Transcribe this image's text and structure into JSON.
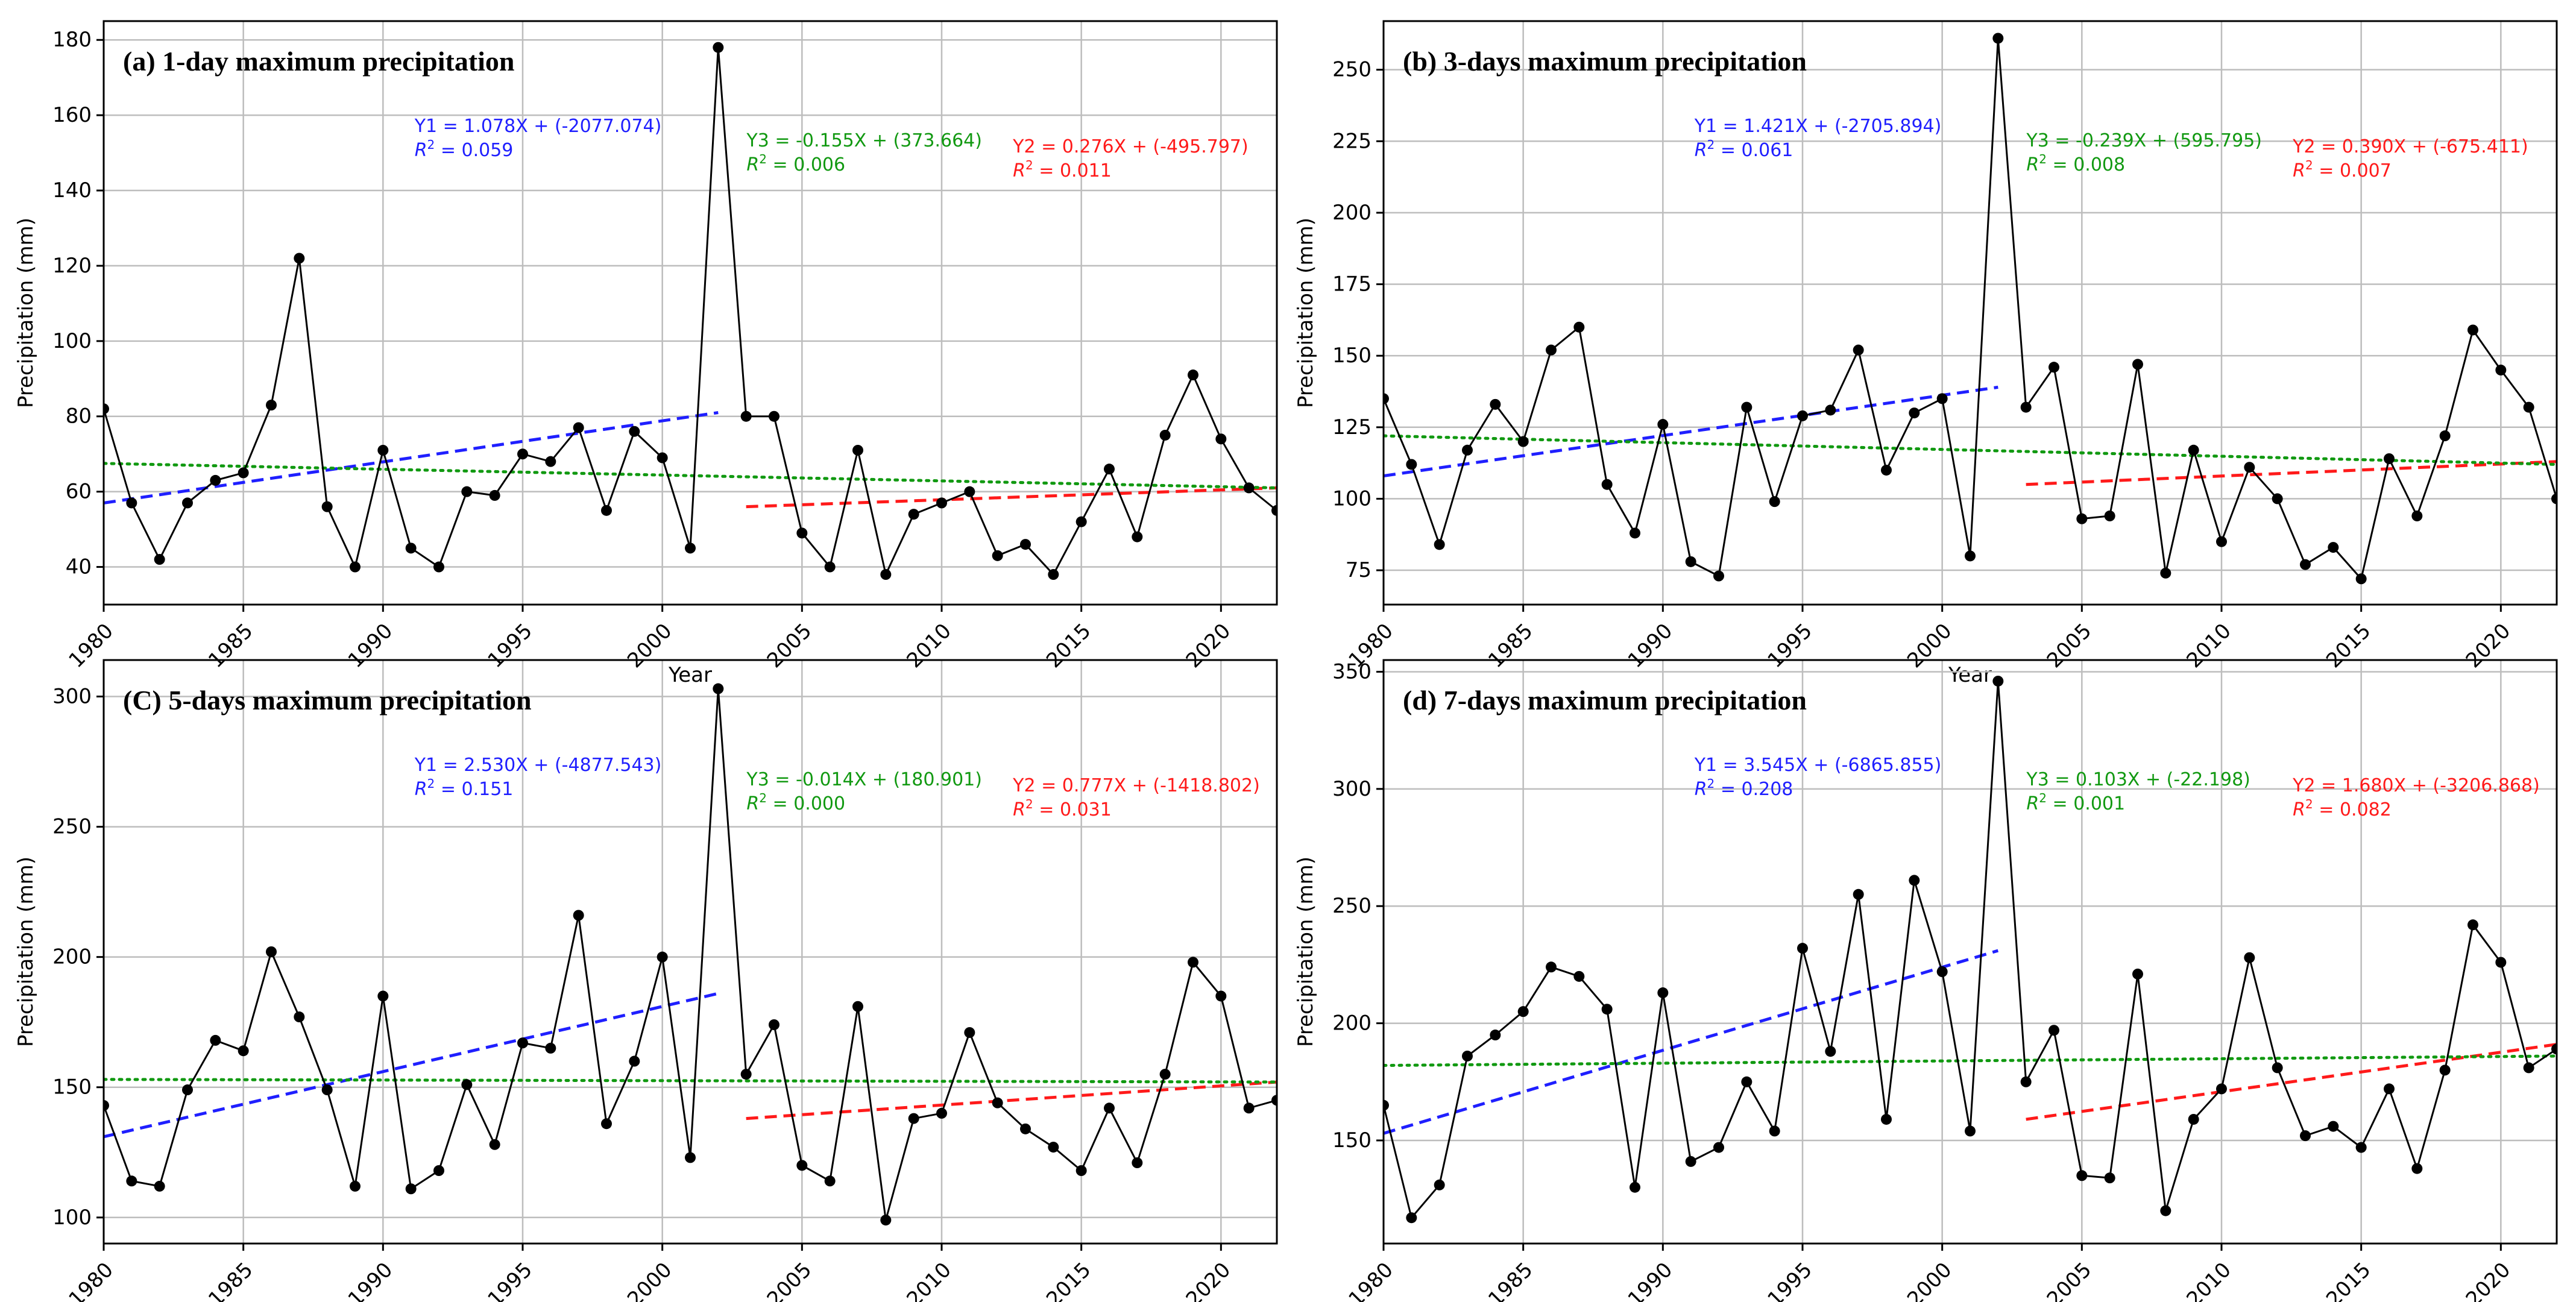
{
  "figure": {
    "xlabel": "Year",
    "ylabel": "Precipitation (mm)"
  },
  "colors": {
    "series": "#000000",
    "trend1": "#1f1fff",
    "trend2": "#ff1a1a",
    "trend3": "#119911",
    "grid": "#bdbdbd",
    "frame": "#000000"
  },
  "chart_data": [
    {
      "type": "line",
      "title": "(a) 1-day maximum precipitation",
      "xlabel": "Year",
      "ylabel": "Precipitation (mm)",
      "xlim": [
        1980,
        2022
      ],
      "ylim": [
        30,
        185
      ],
      "xticks": [
        1980,
        1985,
        1990,
        1995,
        2000,
        2005,
        2010,
        2015,
        2020
      ],
      "yticks": [
        40,
        60,
        80,
        100,
        120,
        140,
        160,
        180
      ],
      "grid": true,
      "x": [
        1980,
        1981,
        1982,
        1983,
        1984,
        1985,
        1986,
        1987,
        1988,
        1989,
        1990,
        1991,
        1992,
        1993,
        1994,
        1995,
        1996,
        1997,
        1998,
        1999,
        2000,
        2001,
        2002,
        2003,
        2004,
        2005,
        2006,
        2007,
        2008,
        2009,
        2010,
        2011,
        2012,
        2013,
        2014,
        2015,
        2016,
        2017,
        2018,
        2019,
        2020,
        2021,
        2022
      ],
      "y": [
        82,
        57,
        42,
        57,
        63,
        65,
        83,
        122,
        56,
        40,
        71,
        45,
        40,
        60,
        59,
        70,
        68,
        77,
        55,
        76,
        69,
        45,
        178,
        80,
        80,
        49,
        40,
        71,
        38,
        54,
        57,
        60,
        43,
        46,
        38,
        52,
        66,
        48,
        75,
        91,
        74,
        61,
        55
      ],
      "trends": [
        {
          "key": "Y1",
          "equation": "Y1 = 1.078X + (-2077.074)",
          "r2": "0.059",
          "x": [
            1980,
            2002
          ],
          "y": [
            57,
            81
          ],
          "style": "dashed",
          "color": "blue"
        },
        {
          "key": "Y2",
          "equation": "Y2 = 0.276X + (-495.797)",
          "r2": "0.011",
          "x": [
            2003,
            2022
          ],
          "y": [
            56,
            61
          ],
          "style": "dashed",
          "color": "red"
        },
        {
          "key": "Y3",
          "equation": "Y3 = -0.155X + (373.664)",
          "r2": "0.006",
          "x": [
            1980,
            2022
          ],
          "y": [
            67.5,
            61
          ],
          "style": "dotted",
          "color": "green"
        }
      ]
    },
    {
      "type": "line",
      "title": "(b) 3-days maximum precipitation",
      "xlabel": "Year",
      "ylabel": "Precipitation (mm)",
      "xlim": [
        1980,
        2022
      ],
      "ylim": [
        63,
        267
      ],
      "xticks": [
        1980,
        1985,
        1990,
        1995,
        2000,
        2005,
        2010,
        2015,
        2020
      ],
      "yticks": [
        75,
        100,
        125,
        150,
        175,
        200,
        225,
        250
      ],
      "grid": true,
      "x": [
        1980,
        1981,
        1982,
        1983,
        1984,
        1985,
        1986,
        1987,
        1988,
        1989,
        1990,
        1991,
        1992,
        1993,
        1994,
        1995,
        1996,
        1997,
        1998,
        1999,
        2000,
        2001,
        2002,
        2003,
        2004,
        2005,
        2006,
        2007,
        2008,
        2009,
        2010,
        2011,
        2012,
        2013,
        2014,
        2015,
        2016,
        2017,
        2018,
        2019,
        2020,
        2021,
        2022
      ],
      "y": [
        135,
        112,
        84,
        117,
        133,
        120,
        152,
        160,
        105,
        88,
        126,
        78,
        73,
        132,
        99,
        129,
        131,
        152,
        110,
        130,
        135,
        80,
        261,
        132,
        146,
        93,
        94,
        147,
        74,
        117,
        85,
        111,
        100,
        77,
        83,
        72,
        114,
        94,
        122,
        159,
        145,
        132,
        100
      ],
      "trends": [
        {
          "key": "Y1",
          "equation": "Y1 = 1.421X + (-2705.894)",
          "r2": "0.061",
          "x": [
            1980,
            2002
          ],
          "y": [
            108,
            139
          ],
          "style": "dashed",
          "color": "blue"
        },
        {
          "key": "Y2",
          "equation": "Y2 = 0.390X + (-675.411)",
          "r2": "0.007",
          "x": [
            2003,
            2022
          ],
          "y": [
            105,
            113
          ],
          "style": "dashed",
          "color": "red"
        },
        {
          "key": "Y3",
          "equation": "Y3 = -0.239X + (595.795)",
          "r2": "0.008",
          "x": [
            1980,
            2022
          ],
          "y": [
            122,
            112
          ],
          "style": "dotted",
          "color": "green"
        }
      ]
    },
    {
      "type": "line",
      "title": "(C) 5-days maximum precipitation",
      "xlabel": "Year",
      "ylabel": "Precipitation (mm)",
      "xlim": [
        1980,
        2022
      ],
      "ylim": [
        90,
        314
      ],
      "xticks": [
        1980,
        1985,
        1990,
        1995,
        2000,
        2005,
        2010,
        2015,
        2020
      ],
      "yticks": [
        100,
        150,
        200,
        250,
        300
      ],
      "grid": true,
      "x": [
        1980,
        1981,
        1982,
        1983,
        1984,
        1985,
        1986,
        1987,
        1988,
        1989,
        1990,
        1991,
        1992,
        1993,
        1994,
        1995,
        1996,
        1997,
        1998,
        1999,
        2000,
        2001,
        2002,
        2003,
        2004,
        2005,
        2006,
        2007,
        2008,
        2009,
        2010,
        2011,
        2012,
        2013,
        2014,
        2015,
        2016,
        2017,
        2018,
        2019,
        2020,
        2021,
        2022
      ],
      "y": [
        143,
        114,
        112,
        149,
        168,
        164,
        202,
        177,
        149,
        112,
        185,
        111,
        118,
        151,
        128,
        167,
        165,
        216,
        136,
        160,
        200,
        123,
        303,
        155,
        174,
        120,
        114,
        181,
        99,
        138,
        140,
        171,
        144,
        134,
        127,
        118,
        142,
        121,
        155,
        198,
        185,
        142,
        145
      ],
      "trends": [
        {
          "key": "Y1",
          "equation": "Y1 = 2.530X + (-4877.543)",
          "r2": "0.151",
          "x": [
            1980,
            2002
          ],
          "y": [
            131,
            186
          ],
          "style": "dashed",
          "color": "blue"
        },
        {
          "key": "Y2",
          "equation": "Y2 = 0.777X + (-1418.802)",
          "r2": "0.031",
          "x": [
            2003,
            2022
          ],
          "y": [
            138,
            152
          ],
          "style": "dashed",
          "color": "red"
        },
        {
          "key": "Y3",
          "equation": "Y3 = -0.014X + (180.901)",
          "r2": "0.000",
          "x": [
            1980,
            2022
          ],
          "y": [
            153,
            152
          ],
          "style": "dotted",
          "color": "green"
        }
      ]
    },
    {
      "type": "line",
      "title": "(d) 7-days maximum precipitation",
      "xlabel": "Year",
      "ylabel": "Precipitation (mm)",
      "xlim": [
        1980,
        2022
      ],
      "ylim": [
        106,
        355
      ],
      "xticks": [
        1980,
        1985,
        1990,
        1995,
        2000,
        2005,
        2010,
        2015,
        2020
      ],
      "yticks": [
        150,
        200,
        250,
        300,
        350
      ],
      "grid": true,
      "x": [
        1980,
        1981,
        1982,
        1983,
        1984,
        1985,
        1986,
        1987,
        1988,
        1989,
        1990,
        1991,
        1992,
        1993,
        1994,
        1995,
        1996,
        1997,
        1998,
        1999,
        2000,
        2001,
        2002,
        2003,
        2004,
        2005,
        2006,
        2007,
        2008,
        2009,
        2010,
        2011,
        2012,
        2013,
        2014,
        2015,
        2016,
        2017,
        2018,
        2019,
        2020,
        2021,
        2022
      ],
      "y": [
        165,
        117,
        131,
        186,
        195,
        205,
        224,
        220,
        206,
        130,
        213,
        141,
        147,
        175,
        154,
        232,
        188,
        255,
        159,
        261,
        222,
        154,
        346,
        175,
        197,
        135,
        134,
        221,
        120,
        159,
        172,
        228,
        181,
        152,
        156,
        147,
        172,
        138,
        180,
        242,
        226,
        181,
        189
      ],
      "trends": [
        {
          "key": "Y1",
          "equation": "Y1 = 3.545X + (-6865.855)",
          "r2": "0.208",
          "x": [
            1980,
            2002
          ],
          "y": [
            153,
            231
          ],
          "style": "dashed",
          "color": "blue"
        },
        {
          "key": "Y2",
          "equation": "Y2 = 1.680X + (-3206.868)",
          "r2": "0.082",
          "x": [
            2003,
            2022
          ],
          "y": [
            159,
            191
          ],
          "style": "dashed",
          "color": "red"
        },
        {
          "key": "Y3",
          "equation": "Y3 = 0.103X + (-22.198)",
          "r2": "0.001",
          "x": [
            1980,
            2022
          ],
          "y": [
            182,
            186
          ],
          "style": "dotted",
          "color": "green"
        }
      ]
    }
  ]
}
